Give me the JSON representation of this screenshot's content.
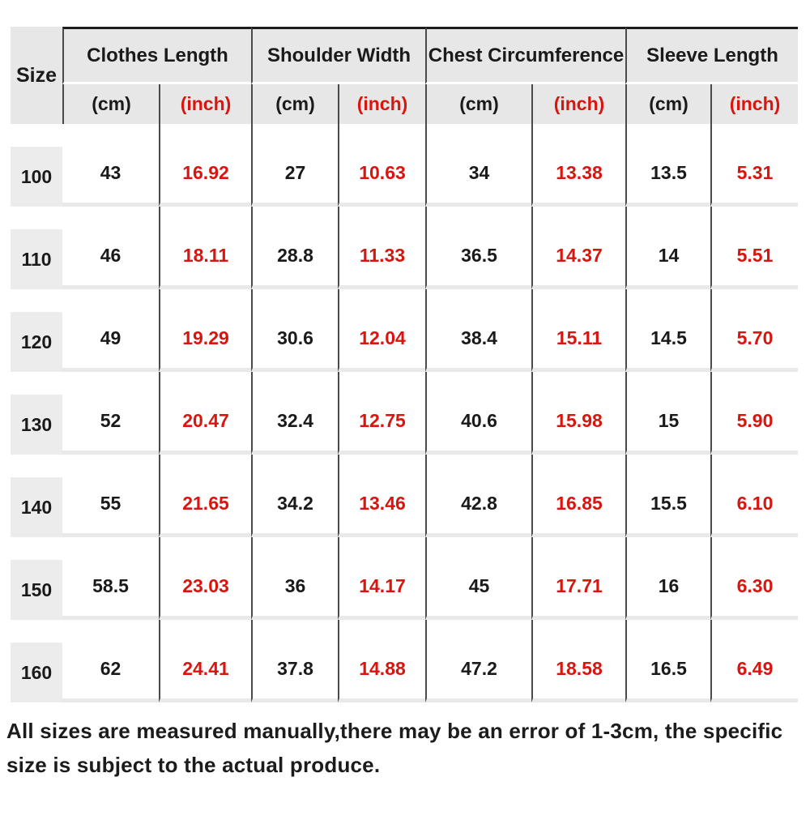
{
  "colors": {
    "red": "#d9150f",
    "line": "#4a4a4a",
    "header_bg": "#e7e7e7",
    "chip_bg": "#ececec",
    "strip": "#e9e9e9"
  },
  "table": {
    "size_header": "Size",
    "groups": [
      "Clothes Length",
      "Shoulder Width",
      "Chest Circumference",
      "Sleeve Length"
    ],
    "cm_label": "(cm)",
    "inch_label": "(inch)",
    "rows": [
      {
        "size": "100",
        "cells": [
          "43",
          "16.92",
          "27",
          "10.63",
          "34",
          "13.38",
          "13.5",
          "5.31"
        ]
      },
      {
        "size": "110",
        "cells": [
          "46",
          "18.11",
          "28.8",
          "11.33",
          "36.5",
          "14.37",
          "14",
          "5.51"
        ]
      },
      {
        "size": "120",
        "cells": [
          "49",
          "19.29",
          "30.6",
          "12.04",
          "38.4",
          "15.11",
          "14.5",
          "5.70"
        ]
      },
      {
        "size": "130",
        "cells": [
          "52",
          "20.47",
          "32.4",
          "12.75",
          "40.6",
          "15.98",
          "15",
          "5.90"
        ]
      },
      {
        "size": "140",
        "cells": [
          "55",
          "21.65",
          "34.2",
          "13.46",
          "42.8",
          "16.85",
          "15.5",
          "6.10"
        ]
      },
      {
        "size": "150",
        "cells": [
          "58.5",
          "23.03",
          "36",
          "14.17",
          "45",
          "17.71",
          "16",
          "6.30"
        ]
      },
      {
        "size": "160",
        "cells": [
          "62",
          "24.41",
          "37.8",
          "14.88",
          "47.2",
          "18.58",
          "16.5",
          "6.49"
        ]
      }
    ]
  },
  "footer_note": "All sizes are measured manually,there may be an error of 1-3cm, the specific size is subject to the actual produce.",
  "chart_data": {
    "type": "table",
    "title": "Kids clothing size chart",
    "columns": [
      "Size",
      "Clothes Length (cm)",
      "Clothes Length (inch)",
      "Shoulder Width (cm)",
      "Shoulder Width (inch)",
      "Chest Circumference (cm)",
      "Chest Circumference (inch)",
      "Sleeve Length (cm)",
      "Sleeve Length (inch)"
    ],
    "rows": [
      [
        "100",
        43,
        16.92,
        27,
        10.63,
        34,
        13.38,
        13.5,
        5.31
      ],
      [
        "110",
        46,
        18.11,
        28.8,
        11.33,
        36.5,
        14.37,
        14,
        5.51
      ],
      [
        "120",
        49,
        19.29,
        30.6,
        12.04,
        38.4,
        15.11,
        14.5,
        5.7
      ],
      [
        "130",
        52,
        20.47,
        32.4,
        12.75,
        40.6,
        15.98,
        15,
        5.9
      ],
      [
        "140",
        55,
        21.65,
        34.2,
        13.46,
        42.8,
        16.85,
        15.5,
        6.1
      ],
      [
        "150",
        58.5,
        23.03,
        36,
        14.17,
        45,
        17.71,
        16,
        6.3
      ],
      [
        "160",
        62,
        24.41,
        37.8,
        14.88,
        47.2,
        18.58,
        16.5,
        6.49
      ]
    ],
    "notes": "inch columns rendered in red; 'All sizes are measured manually,there may be an error of 1-3cm, the specific size is subject to the actual produce.'"
  }
}
